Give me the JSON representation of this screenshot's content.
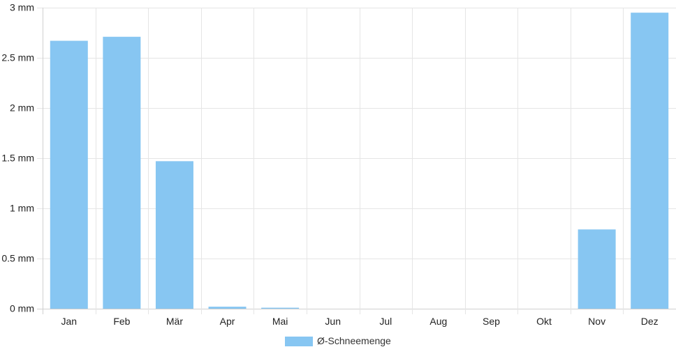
{
  "chart_data": {
    "type": "bar",
    "categories": [
      "Jan",
      "Feb",
      "Mär",
      "Apr",
      "Mai",
      "Jun",
      "Jul",
      "Aug",
      "Sep",
      "Okt",
      "Nov",
      "Dez"
    ],
    "series": [
      {
        "name": "Ø-Schneemenge",
        "values": [
          2.67,
          2.71,
          1.47,
          0.02,
          0.01,
          0,
          0,
          0,
          0,
          0,
          0.79,
          2.95
        ],
        "color": "#87c6f2"
      }
    ],
    "y_ticks": [
      "0 mm",
      "0.5 mm",
      "1 mm",
      "1.5 mm",
      "2 mm",
      "2.5 mm",
      "3 mm"
    ],
    "ylim": [
      0,
      3
    ],
    "grid": true,
    "legend_position": "bottom-center"
  }
}
